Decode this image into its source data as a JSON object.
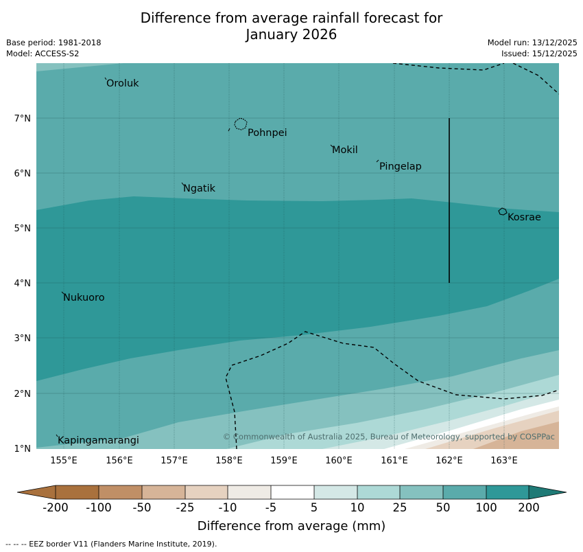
{
  "title_line1": "Difference from average rainfall forecast for",
  "title_line2": "January 2026",
  "base_period": "Base period: 1981-2018",
  "model": "Model: ACCESS-S2",
  "model_run": "Model run: 13/12/2025",
  "issued": "Issued: 15/12/2025",
  "copyright": "© Commonwealth of Australia 2025, Bureau of Meteorology, supported by COSPPac",
  "x_ticks": [
    "155°E",
    "156°E",
    "157°E",
    "158°E",
    "159°E",
    "160°E",
    "161°E",
    "162°E",
    "163°E"
  ],
  "y_ticks": [
    "7°N",
    "6°N",
    "5°N",
    "4°N",
    "3°N",
    "2°N",
    "1°N"
  ],
  "places": {
    "oroluk": "Oroluk",
    "pohnpei": "Pohnpei",
    "mokil": "Mokil",
    "pingelap": "Pingelap",
    "ngatik": "Ngatik",
    "kosrae": "Kosrae",
    "nukuoro": "Nukuoro",
    "kapingamarangi": "Kapingamarangi"
  },
  "colorbar": {
    "label": "Difference from average (mm)",
    "ticks": [
      "-200",
      "-100",
      "-50",
      "-25",
      "-10",
      "-5",
      "5",
      "10",
      "25",
      "50",
      "100",
      "200"
    ],
    "colors": [
      "#a9713d",
      "#c08f66",
      "#d6b498",
      "#e6d2c0",
      "#efebe5",
      "#ffffff",
      "#d4e8e6",
      "#add9d6",
      "#85c1bf",
      "#5aabab",
      "#2f9898",
      "#1f7a76"
    ]
  },
  "footnote": "--  --  -- EEZ border V11 (Flanders Marine Institute, 2019)."
}
